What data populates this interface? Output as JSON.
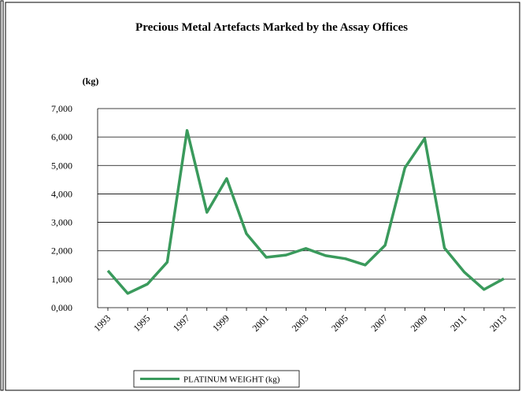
{
  "chart_data": {
    "type": "line",
    "title": "Precious Metal Artefacts Marked by the Assay Offices",
    "y_label": "(kg)",
    "categories": [
      "1993",
      null,
      "1995",
      null,
      "1997",
      null,
      "1999",
      null,
      "2001",
      null,
      "2003",
      null,
      "2005",
      null,
      "2007",
      null,
      "2009",
      null,
      "2011",
      null,
      "2013"
    ],
    "series": [
      {
        "name": "PLATINUM WEIGHT (kg)",
        "color": "#3a9a5c",
        "values": [
          1300,
          500,
          830,
          1600,
          6230,
          3350,
          4540,
          2600,
          1770,
          1850,
          2080,
          1830,
          1720,
          1500,
          2190,
          4920,
          5950,
          2100,
          1250,
          640,
          1020
        ]
      }
    ],
    "ylim": [
      0,
      7000
    ],
    "yticks": [
      {
        "value": 0,
        "label": "0,000"
      },
      {
        "value": 1000,
        "label": "1,000"
      },
      {
        "value": 2000,
        "label": "2,000"
      },
      {
        "value": 3000,
        "label": "3,000"
      },
      {
        "value": 4000,
        "label": "4,000"
      },
      {
        "value": 5000,
        "label": "5,000"
      },
      {
        "value": 6000,
        "label": "6,000"
      },
      {
        "value": 7000,
        "label": "7,000"
      }
    ],
    "grid": true,
    "legend": "bottom"
  }
}
